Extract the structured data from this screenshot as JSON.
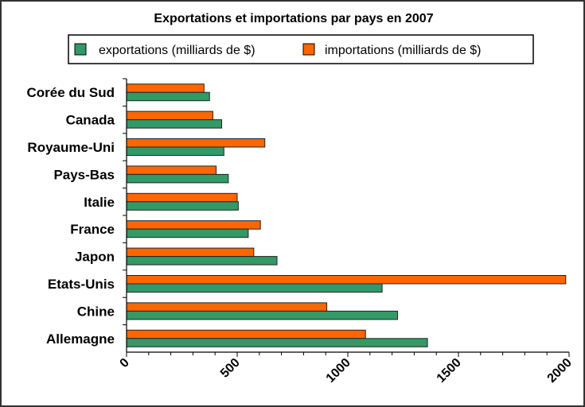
{
  "chart_data": {
    "type": "bar",
    "orientation": "horizontal",
    "title": "Exportations et importations par pays en 2007",
    "categories": [
      "Allemagne",
      "Chine",
      "Etats-Unis",
      "Japon",
      "France",
      "Italie",
      "Pays-Bas",
      "Royaume-Uni",
      "Canada",
      "Corée du Sud"
    ],
    "series": [
      {
        "name": "exportations (milliards de $)",
        "color": "#339966",
        "values": [
          1360,
          1225,
          1155,
          680,
          550,
          505,
          460,
          440,
          430,
          375
        ]
      },
      {
        "name": "importations (milliards de $)",
        "color": "#FF6600",
        "values": [
          1080,
          905,
          1985,
          575,
          605,
          500,
          405,
          625,
          390,
          350
        ]
      }
    ],
    "xlim": [
      0,
      2000
    ],
    "xticks": [
      "0",
      "500",
      "1000",
      "1500",
      "2000"
    ],
    "xlabel": "",
    "ylabel": "",
    "grid": false,
    "legend": "top"
  }
}
